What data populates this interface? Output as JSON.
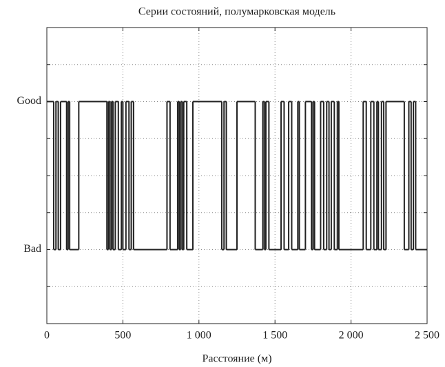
{
  "chart_data": {
    "type": "step",
    "title": "Серии состояний, полумарковская модель",
    "x_label": "Расстояние (м)",
    "x": [
      0,
      45,
      60,
      75,
      90,
      130,
      140,
      150,
      210,
      395,
      405,
      415,
      425,
      435,
      450,
      470,
      490,
      500,
      520,
      540,
      555,
      570,
      790,
      810,
      860,
      870,
      880,
      890,
      900,
      920,
      960,
      1150,
      1165,
      1180,
      1250,
      1370,
      1420,
      1430,
      1440,
      1460,
      1540,
      1560,
      1590,
      1610,
      1650,
      1660,
      1700,
      1740,
      1750,
      1760,
      1800,
      1820,
      1840,
      1855,
      1870,
      1890,
      1910,
      1920,
      2080,
      2100,
      2130,
      2150,
      2170,
      2180,
      2200,
      2215,
      2230,
      2350,
      2380,
      2395,
      2410,
      2425,
      2500
    ],
    "values": [
      1,
      0,
      1,
      0,
      1,
      0,
      1,
      0,
      1,
      0,
      1,
      0,
      1,
      0,
      1,
      0,
      1,
      0,
      1,
      0,
      1,
      0,
      1,
      0,
      1,
      0,
      1,
      0,
      1,
      0,
      1,
      0,
      1,
      0,
      1,
      0,
      1,
      0,
      1,
      0,
      1,
      0,
      1,
      0,
      1,
      0,
      1,
      0,
      1,
      0,
      1,
      0,
      1,
      0,
      1,
      0,
      1,
      0,
      1,
      0,
      1,
      0,
      1,
      0,
      1,
      0,
      1,
      0,
      1,
      0,
      1,
      0,
      0
    ],
    "color": "#222222",
    "xlim": [
      0,
      2500
    ],
    "xticks": [
      0,
      500,
      {
        "value": 1000,
        "label": "1 000"
      },
      {
        "value": 1500,
        "label": "1 500"
      },
      {
        "value": 2000,
        "label": "2 000"
      },
      {
        "value": 2500,
        "label": "2 500"
      }
    ],
    "ylim": [
      -0.5,
      1.5
    ],
    "yticks": [
      {
        "value": -0.5,
        "label": null
      },
      {
        "value": -0.25,
        "label": null
      },
      {
        "value": 0,
        "label": "Bad"
      },
      {
        "value": 0.25,
        "label": null
      },
      {
        "value": 0.5,
        "label": null
      },
      {
        "value": 0.75,
        "label": null
      },
      {
        "value": 1,
        "label": "Good"
      },
      {
        "value": 1.25,
        "label": null
      },
      {
        "value": 1.5,
        "label": null
      }
    ],
    "grid": true
  }
}
